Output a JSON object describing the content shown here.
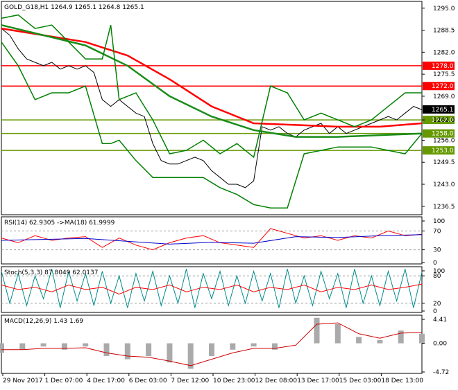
{
  "chart_data": [
    {
      "type": "line",
      "panel": "price",
      "title": "GOLD_G18,H1  1264.9 1265.1 1264.8 1265.1",
      "ylim": [
        1234,
        1297
      ],
      "y_ticks": [
        "1295.0",
        "1288.5",
        "1282.0",
        "1275.5",
        "1269.0",
        "1262.0",
        "1256.0",
        "1249.5",
        "1243.0",
        "1236.5"
      ],
      "last_price": "1265.1",
      "levels": [
        {
          "label": "1278.0",
          "value": 1278.0,
          "color": "#ff0000"
        },
        {
          "label": "1272.0",
          "value": 1272.0,
          "color": "#ff0000"
        },
        {
          "label": "1262.0",
          "value": 1262.0,
          "color": "#669900"
        },
        {
          "label": "1258.0",
          "value": 1258.0,
          "color": "#669900"
        },
        {
          "label": "1253.0",
          "value": 1253.0,
          "color": "#669900"
        }
      ],
      "x_range": [
        0,
        100
      ],
      "series": [
        {
          "role": "close",
          "color": "#000000",
          "x": [
            0,
            2,
            4,
            6,
            8,
            10,
            12,
            14,
            16,
            18,
            20,
            22,
            24,
            26,
            28,
            30,
            32,
            34,
            36,
            38,
            40,
            42,
            44,
            46,
            48,
            50,
            52,
            54,
            56,
            58,
            60,
            62,
            64,
            66,
            68,
            70,
            72,
            74,
            76,
            78,
            80,
            82,
            84,
            86,
            88,
            90,
            92,
            94,
            96,
            98,
            100
          ],
          "y": [
            1289,
            1287,
            1283,
            1280,
            1279,
            1278,
            1279,
            1277,
            1278,
            1277,
            1278,
            1276,
            1268,
            1266,
            1268,
            1266,
            1264,
            1263,
            1255,
            1250,
            1249,
            1249,
            1250,
            1251,
            1250,
            1247,
            1245,
            1243,
            1243,
            1242,
            1244,
            1260,
            1259,
            1260,
            1258,
            1257,
            1259,
            1260,
            1261,
            1258,
            1260,
            1258,
            1259,
            1260,
            1261,
            1262,
            1263,
            1262,
            1264,
            1266,
            1265
          ]
        },
        {
          "role": "ma-long-red",
          "color": "#ff0000",
          "x": [
            0,
            10,
            20,
            30,
            40,
            50,
            60,
            70,
            80,
            90,
            100
          ],
          "y": [
            1289,
            1287,
            1285,
            1281,
            1274,
            1266,
            1261,
            1260.5,
            1260,
            1260,
            1261
          ]
        },
        {
          "role": "ma-long-green",
          "color": "#1a8c1a",
          "x": [
            0,
            10,
            20,
            30,
            40,
            50,
            60,
            70,
            80,
            90,
            100
          ],
          "y": [
            1290,
            1287,
            1284,
            1278,
            1269,
            1263,
            1259,
            1257,
            1257,
            1257.5,
            1258
          ]
        },
        {
          "role": "band-upper",
          "color": "#008000",
          "x": [
            0,
            4,
            8,
            12,
            16,
            20,
            24,
            26,
            28,
            32,
            36,
            40,
            44,
            48,
            52,
            56,
            60,
            64,
            68,
            72,
            76,
            80,
            84,
            88,
            92,
            96,
            100
          ],
          "y": [
            1292,
            1293,
            1289,
            1290,
            1285,
            1280,
            1280,
            1290,
            1268,
            1270,
            1262,
            1252,
            1253,
            1256,
            1252,
            1255,
            1251,
            1272,
            1270,
            1262,
            1264,
            1262,
            1260,
            1262,
            1266,
            1270,
            1270
          ]
        },
        {
          "role": "band-lower",
          "color": "#008000",
          "x": [
            0,
            4,
            8,
            12,
            16,
            20,
            24,
            26,
            28,
            32,
            36,
            40,
            44,
            48,
            52,
            56,
            60,
            64,
            68,
            72,
            76,
            80,
            84,
            88,
            92,
            96,
            100
          ],
          "y": [
            1285,
            1278,
            1268,
            1270,
            1270,
            1272,
            1255,
            1255,
            1256,
            1250,
            1245,
            1245,
            1245,
            1245,
            1242,
            1240,
            1237,
            1236,
            1236,
            1252,
            1253,
            1254,
            1254,
            1254,
            1253,
            1252,
            1258
          ]
        }
      ]
    },
    {
      "type": "line",
      "panel": "rsi",
      "title": "RSI(14) 62.9305  ->MA(18) 61.9999",
      "ylim": [
        0,
        100
      ],
      "y_ticks": [
        "100",
        "70",
        "30",
        "0"
      ],
      "series": [
        {
          "role": "rsi",
          "color": "#ff0000",
          "x": [
            0,
            4,
            8,
            12,
            16,
            20,
            24,
            28,
            32,
            36,
            40,
            44,
            48,
            52,
            56,
            60,
            64,
            68,
            72,
            76,
            80,
            84,
            88,
            92,
            96,
            100
          ],
          "y": [
            55,
            45,
            60,
            50,
            55,
            58,
            35,
            55,
            40,
            30,
            45,
            55,
            60,
            45,
            40,
            35,
            75,
            65,
            55,
            60,
            50,
            60,
            55,
            70,
            60,
            63
          ]
        },
        {
          "role": "rsi-ma",
          "color": "#0000cc",
          "x": [
            0,
            10,
            20,
            30,
            40,
            50,
            60,
            70,
            80,
            90,
            100
          ],
          "y": [
            50,
            52,
            54,
            48,
            42,
            46,
            44,
            58,
            56,
            60,
            62
          ]
        }
      ]
    },
    {
      "type": "line",
      "panel": "stochastic",
      "title": "Stoch(5,3,3) 87.8049 62.0137",
      "ylim": [
        0,
        100
      ],
      "y_ticks": [
        "100",
        "80",
        "20",
        "0"
      ],
      "series": [
        {
          "role": "main",
          "color": "#008b8b",
          "x": [
            0,
            2,
            4,
            6,
            8,
            10,
            12,
            14,
            16,
            18,
            20,
            22,
            24,
            26,
            28,
            30,
            32,
            34,
            36,
            38,
            40,
            42,
            44,
            46,
            48,
            50,
            52,
            54,
            56,
            58,
            60,
            62,
            64,
            66,
            68,
            70,
            72,
            74,
            76,
            78,
            80,
            82,
            84,
            86,
            88,
            90,
            92,
            94,
            96,
            98,
            100
          ],
          "y": [
            90,
            20,
            85,
            15,
            80,
            30,
            95,
            10,
            90,
            25,
            85,
            15,
            90,
            20,
            80,
            10,
            85,
            25,
            90,
            15,
            80,
            20,
            95,
            10,
            85,
            30,
            90,
            15,
            80,
            20,
            90,
            25,
            85,
            10,
            95,
            20,
            80,
            15,
            90,
            30,
            85,
            10,
            95,
            20,
            80,
            15,
            90,
            25,
            95,
            10,
            88
          ]
        },
        {
          "role": "signal",
          "color": "#ff0000",
          "x": [
            0,
            4,
            8,
            12,
            16,
            20,
            24,
            28,
            32,
            36,
            40,
            44,
            48,
            52,
            56,
            60,
            64,
            68,
            72,
            76,
            80,
            84,
            88,
            92,
            96,
            100
          ],
          "y": [
            60,
            50,
            55,
            45,
            60,
            50,
            55,
            40,
            55,
            50,
            60,
            45,
            55,
            50,
            60,
            45,
            55,
            50,
            60,
            45,
            55,
            50,
            60,
            50,
            55,
            62
          ]
        }
      ]
    },
    {
      "type": "bar",
      "panel": "macd",
      "title": "MACD(12,26,9) 1.43 1.69",
      "ylim": [
        -4.72,
        4.41
      ],
      "y_ticks": [
        "4.41",
        "0.00",
        "-4.72"
      ],
      "x": [
        0,
        5,
        10,
        15,
        20,
        25,
        30,
        35,
        40,
        45,
        50,
        55,
        60,
        65,
        70,
        75,
        80,
        85,
        90,
        95,
        100
      ],
      "values": [
        -1.5,
        -1,
        -0.5,
        -1,
        -0.5,
        -2,
        -2.5,
        -2,
        -3,
        -4,
        -2,
        -1,
        -0.5,
        -1,
        0,
        4,
        3,
        1,
        0.5,
        2,
        1.5
      ],
      "signal": [
        -1,
        -1,
        -0.8,
        -0.8,
        -0.7,
        -1.5,
        -2,
        -2.2,
        -2.8,
        -3.5,
        -2.5,
        -1.5,
        -0.8,
        -0.8,
        -0.3,
        3,
        3.2,
        1.5,
        0.8,
        1.6,
        1.7
      ],
      "signal_color": "#cc0000"
    }
  ],
  "x_axis_labels": [
    "29 Nov 2017",
    "1 Dec 07:00",
    "4 Dec 17:00",
    "6 Dec 03:00",
    "7 Dec 12:00",
    "10 Dec 23:00",
    "12 Dec 08:00",
    "13 Dec 17:00",
    "15 Dec 03:00",
    "18 Dec 13:00"
  ],
  "legend_placement": "top-left"
}
